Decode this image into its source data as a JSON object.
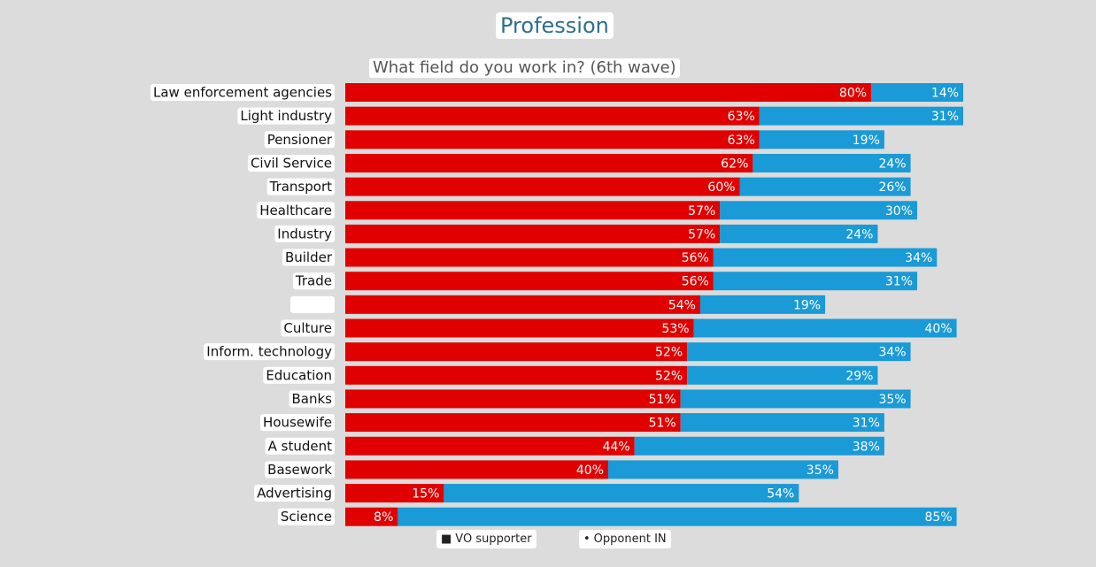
{
  "chart_data": {
    "type": "bar",
    "orientation": "horizontal",
    "stacked": true,
    "title": "Profession",
    "subtitle": "What field do you work in? (6th wave)",
    "categories": [
      "Law enforcement agencies",
      "Light industry",
      "Pensioner",
      "Civil Service",
      "Transport",
      "Healthcare",
      "Industry",
      "Builder",
      "Trade",
      "",
      "Culture",
      "Inform. technology",
      "Education",
      "Banks",
      "Housewife",
      "A student",
      "Basework",
      "Advertising",
      "Science"
    ],
    "series": [
      {
        "name": "VO supporter",
        "color": "#e00000",
        "values": [
          80,
          63,
          63,
          62,
          60,
          57,
          57,
          56,
          56,
          54,
          53,
          52,
          52,
          51,
          51,
          44,
          40,
          15,
          8
        ],
        "labels": [
          "80%",
          "63%",
          "63%",
          "62%",
          "60%",
          "57%",
          "57%",
          "56%",
          "56%",
          "54%",
          "53%",
          "52%",
          "52%",
          "51%",
          "51%",
          "44%",
          "40%",
          "15%",
          "8%"
        ]
      },
      {
        "name": "Opponent IN",
        "color": "#1a9ad6",
        "values": [
          14,
          31,
          19,
          24,
          26,
          30,
          24,
          34,
          31,
          19,
          40,
          34,
          29,
          35,
          31,
          38,
          35,
          54,
          85
        ],
        "labels": [
          "14%",
          "31%",
          "19%",
          "24%",
          "26%",
          "30%",
          "24%",
          "34%",
          "31%",
          "19%",
          "40%",
          "34%",
          "29%",
          "35%",
          "31%",
          "38%",
          "35%",
          "54%",
          "85%"
        ]
      }
    ],
    "xlim": [
      0,
      94
    ],
    "legend": {
      "position": "bottom",
      "items": [
        {
          "marker": "■",
          "label": "VO supporter"
        },
        {
          "marker": "•",
          "label": "Opponent IN"
        }
      ]
    }
  }
}
